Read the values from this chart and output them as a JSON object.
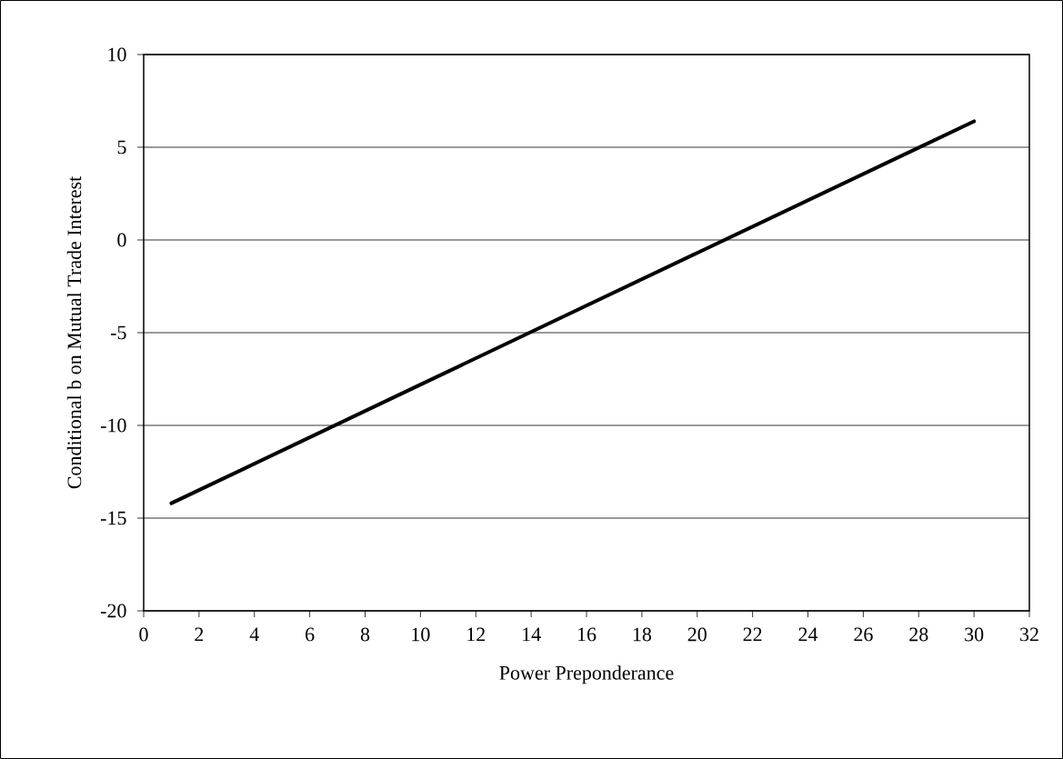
{
  "chart_data": {
    "type": "line",
    "xlabel": "Power Preponderance",
    "ylabel": "Conditional b on Mutual Trade Interest",
    "x": [
      1,
      10,
      20,
      30
    ],
    "series": [
      {
        "color": "#000000",
        "values": [
          -14.2,
          -7.8,
          -0.7,
          6.4
        ]
      }
    ],
    "xlim": [
      0,
      32
    ],
    "xticks": [
      0,
      2,
      4,
      6,
      8,
      10,
      12,
      14,
      16,
      18,
      20,
      22,
      24,
      26,
      28,
      30,
      32
    ],
    "ylim": [
      -20,
      10
    ],
    "yticks": [
      -20,
      -15,
      -10,
      -5,
      0,
      5,
      10
    ],
    "grid": "y",
    "marker": "none",
    "line_style": "solid"
  }
}
